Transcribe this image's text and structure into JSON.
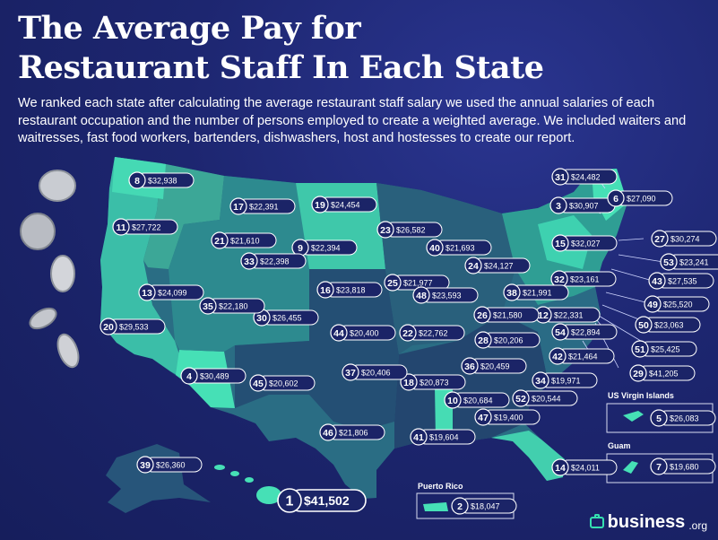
{
  "title_line1": "The Average Pay for",
  "title_line2": "Restaurant Staff In Each State",
  "subtitle": "We ranked each state after calculating the average restaurant staff salary we used the annual salaries of each restaurant occupation and the number of persons employed to create a weighted average. We included waiters and waitresses, fast food workers, bartenders, dishwashers, host and hostesses to create our report.",
  "territories": {
    "usvi": "US Virgin Islands",
    "guam": "Guam",
    "pr": "Puerto Rico"
  },
  "logo": {
    "name": "business",
    "suffix": ".org"
  },
  "colors": {
    "background": "#1b2467",
    "map_light": "#3fd6b0",
    "map_mid": "#2f9c94",
    "map_dark": "#2a5a78",
    "map_darkest": "#1f3a66",
    "label_circle": "#1b2467",
    "accent": "#35e0b0"
  },
  "states": [
    {
      "rank": "1",
      "salary": "$41,502",
      "tier": "big"
    },
    {
      "rank": "2",
      "salary": "$18,047"
    },
    {
      "rank": "3",
      "salary": "$30,907"
    },
    {
      "rank": "4",
      "salary": "$30,489"
    },
    {
      "rank": "5",
      "salary": "$26,083"
    },
    {
      "rank": "6",
      "salary": "$27,090"
    },
    {
      "rank": "7",
      "salary": "$19,680"
    },
    {
      "rank": "8",
      "salary": "$32,938"
    },
    {
      "rank": "9",
      "salary": "$22,394"
    },
    {
      "rank": "10",
      "salary": "$20,684"
    },
    {
      "rank": "11",
      "salary": "$27,722"
    },
    {
      "rank": "12",
      "salary": "$22,331"
    },
    {
      "rank": "13",
      "salary": "$24,099"
    },
    {
      "rank": "14",
      "salary": "$24,011"
    },
    {
      "rank": "15",
      "salary": "$32,027"
    },
    {
      "rank": "16",
      "salary": "$23,818"
    },
    {
      "rank": "17",
      "salary": "$22,391"
    },
    {
      "rank": "18",
      "salary": "$20,873"
    },
    {
      "rank": "19",
      "salary": "$24,454"
    },
    {
      "rank": "20",
      "salary": "$29,533"
    },
    {
      "rank": "21",
      "salary": "$21,610"
    },
    {
      "rank": "22",
      "salary": "$22,762"
    },
    {
      "rank": "23",
      "salary": "$26,582"
    },
    {
      "rank": "24",
      "salary": "$24,127"
    },
    {
      "rank": "25",
      "salary": "$21,977"
    },
    {
      "rank": "26",
      "salary": "$21,580"
    },
    {
      "rank": "27",
      "salary": "$30,274"
    },
    {
      "rank": "28",
      "salary": "$20,206"
    },
    {
      "rank": "29",
      "salary": "$41,205"
    },
    {
      "rank": "30",
      "salary": "$26,455"
    },
    {
      "rank": "31",
      "salary": "$24,482"
    },
    {
      "rank": "32",
      "salary": "$23,161"
    },
    {
      "rank": "33",
      "salary": "$22,398"
    },
    {
      "rank": "34",
      "salary": "$19,971"
    },
    {
      "rank": "35",
      "salary": "$22,180"
    },
    {
      "rank": "36",
      "salary": "$20,459"
    },
    {
      "rank": "37",
      "salary": "$20,406"
    },
    {
      "rank": "38",
      "salary": "$21,991"
    },
    {
      "rank": "39",
      "salary": "$26,360"
    },
    {
      "rank": "40",
      "salary": "$21,693"
    },
    {
      "rank": "41",
      "salary": "$19,604"
    },
    {
      "rank": "42",
      "salary": "$21,464"
    },
    {
      "rank": "43",
      "salary": "$27,535"
    },
    {
      "rank": "44",
      "salary": "$20,400"
    },
    {
      "rank": "45",
      "salary": "$20,602"
    },
    {
      "rank": "46",
      "salary": "$21,806"
    },
    {
      "rank": "47",
      "salary": "$19,400"
    },
    {
      "rank": "48",
      "salary": "$23,593"
    },
    {
      "rank": "49",
      "salary": "$25,520"
    },
    {
      "rank": "50",
      "salary": "$23,063"
    },
    {
      "rank": "51",
      "salary": "$25,425"
    },
    {
      "rank": "52",
      "salary": "$20,544"
    },
    {
      "rank": "53",
      "salary": "$23,241"
    },
    {
      "rank": "54",
      "salary": "$22,894"
    }
  ]
}
